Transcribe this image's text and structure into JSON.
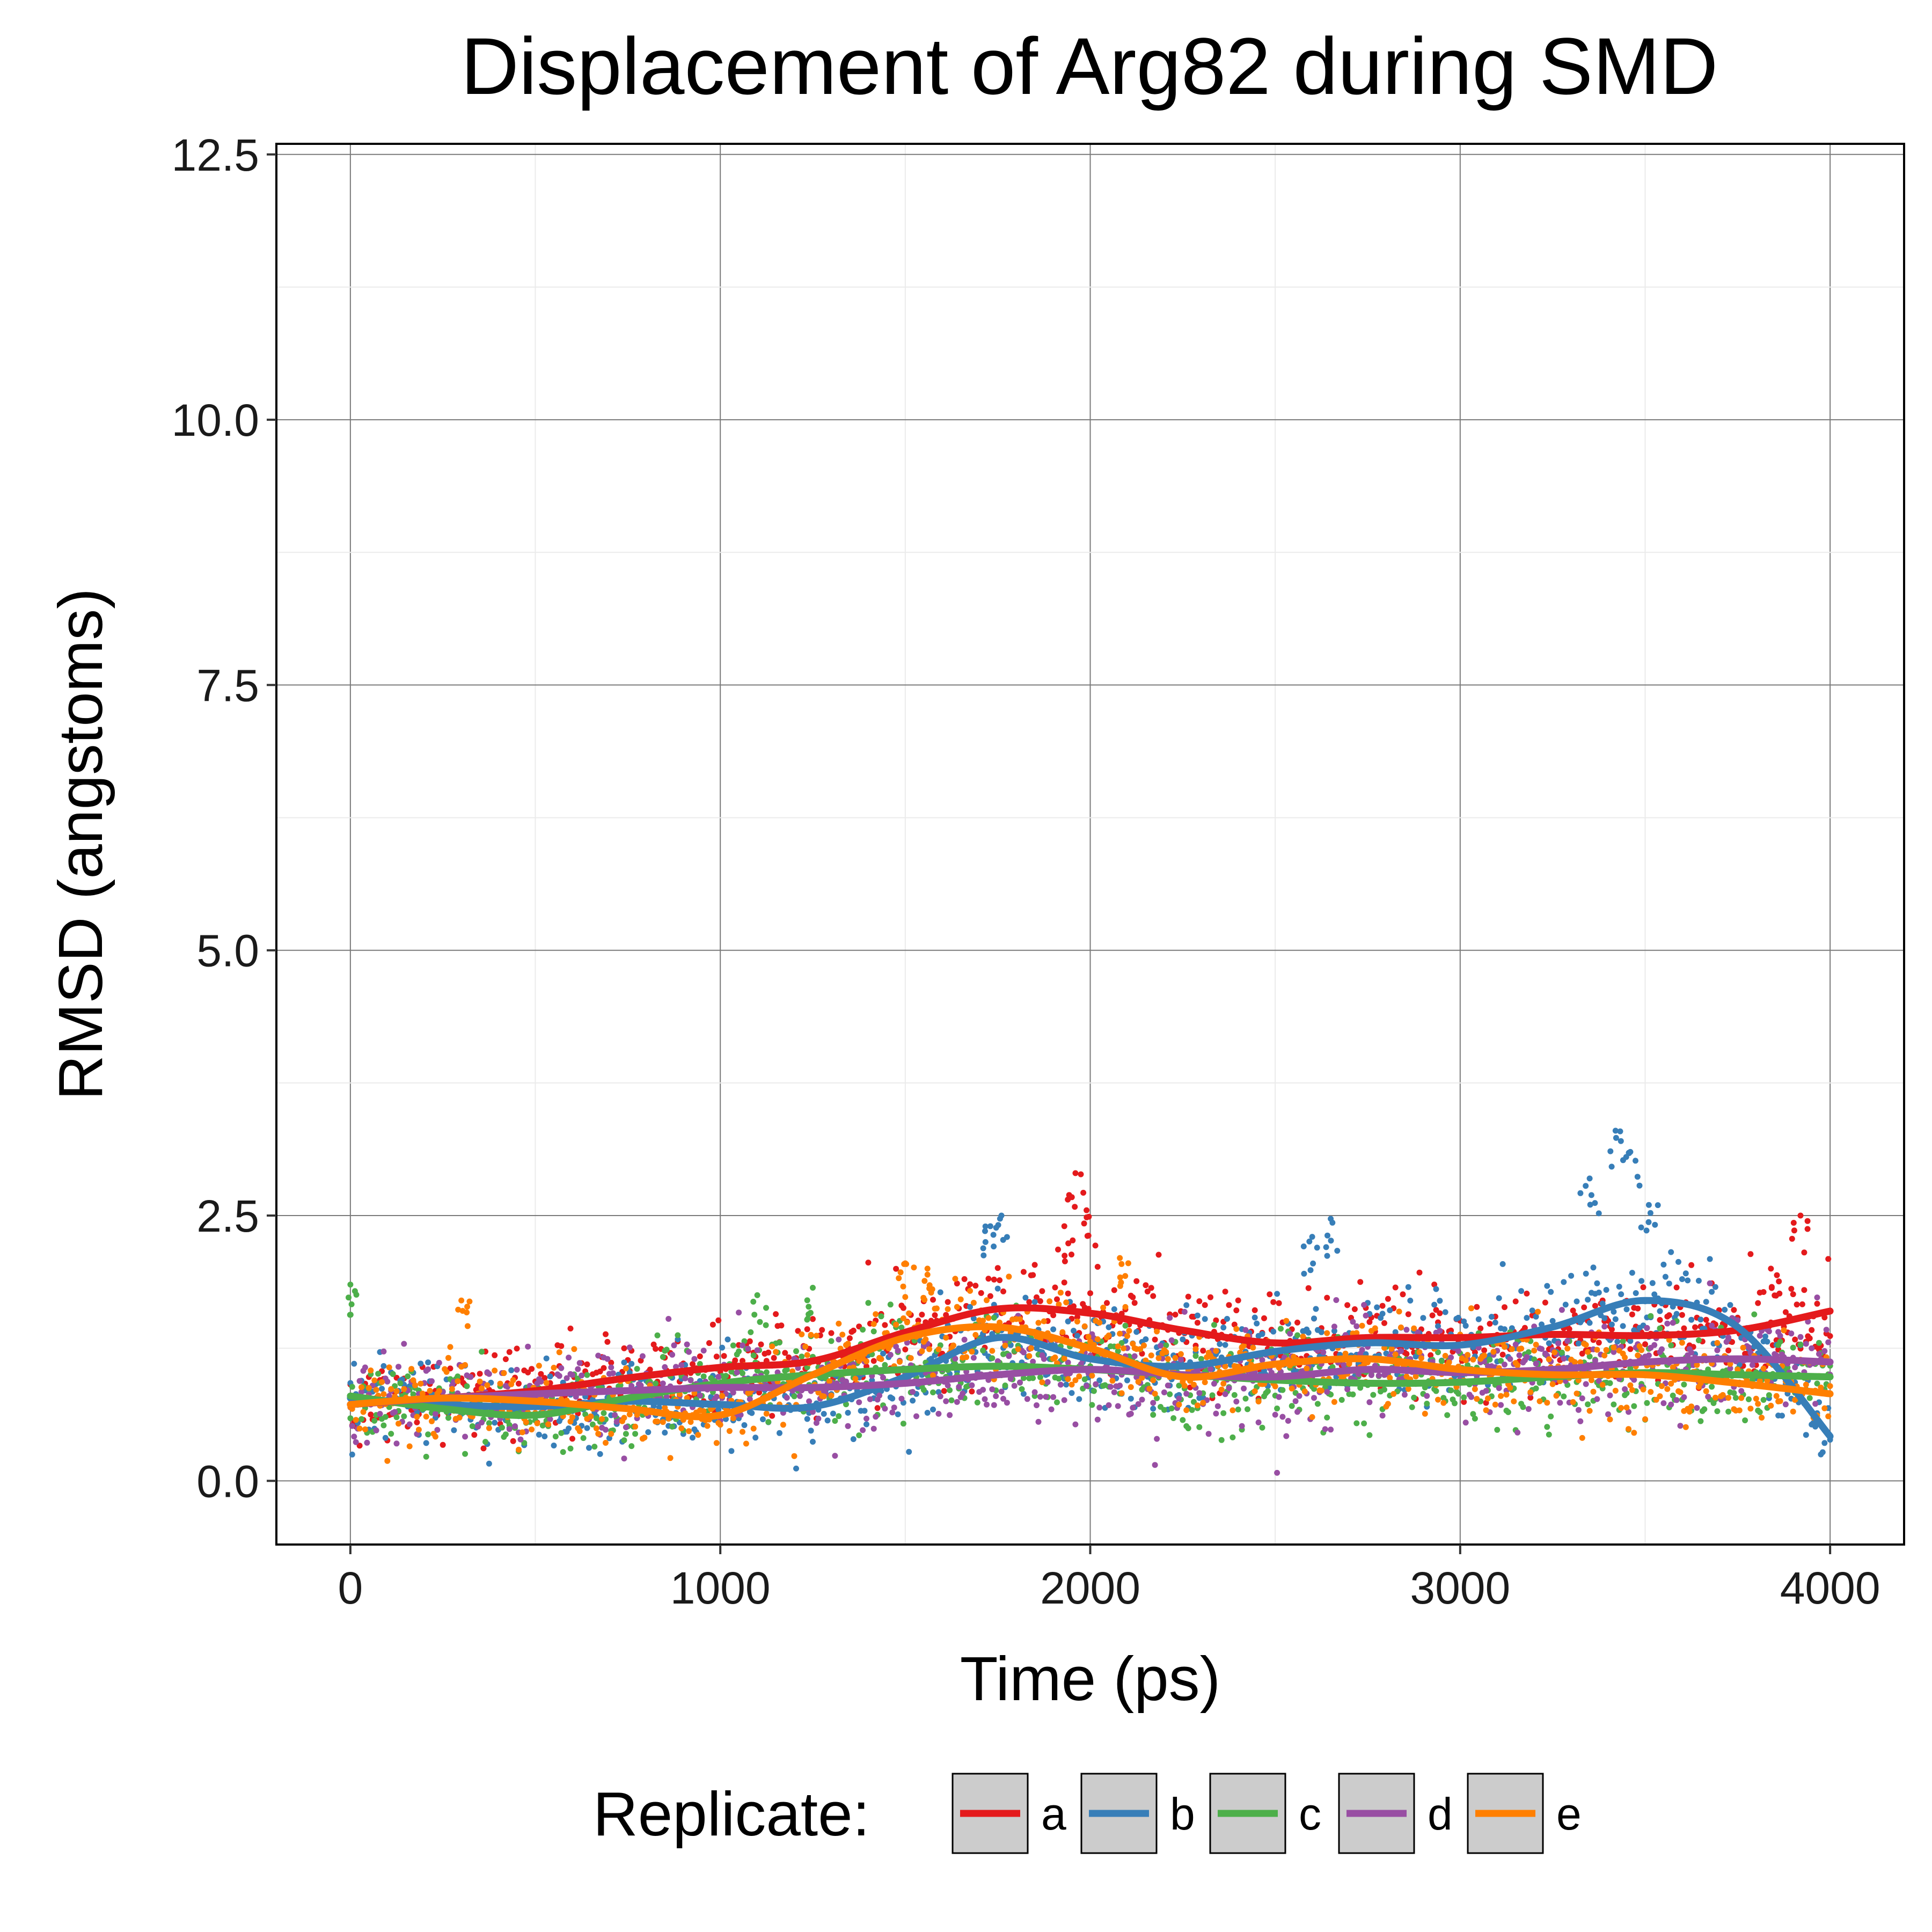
{
  "chart_data": {
    "type": "scatter",
    "title": "Displacement of Arg82 during SMD",
    "xlabel": "Time (ps)",
    "ylabel": "RMSD (angstoms)",
    "xlim": [
      -200,
      4200
    ],
    "ylim": [
      -0.6,
      12.6
    ],
    "x_ticks": [
      0,
      1000,
      2000,
      3000,
      4000
    ],
    "y_ticks": [
      0.0,
      2.5,
      5.0,
      7.5,
      10.0,
      12.5
    ],
    "x_tick_labels": [
      "0",
      "1000",
      "2000",
      "3000",
      "4000"
    ],
    "y_tick_labels": [
      "0.0",
      "2.5",
      "5.0",
      "7.5",
      "10.0",
      "12.5"
    ],
    "grid": true,
    "legend": {
      "title": "Replicate:",
      "position": "bottom"
    },
    "series": [
      {
        "name": "a",
        "color": "#e41a1c",
        "smooth": {
          "x": [
            0,
            250,
            500,
            750,
            1000,
            1250,
            1500,
            1750,
            2000,
            2250,
            2500,
            2750,
            3000,
            3250,
            3500,
            3750,
            4000
          ],
          "y": [
            0.72,
            0.78,
            0.85,
            0.97,
            1.07,
            1.13,
            1.4,
            1.62,
            1.58,
            1.42,
            1.3,
            1.35,
            1.35,
            1.38,
            1.37,
            1.42,
            1.6
          ]
        },
        "spikes": [
          {
            "x": 1960,
            "y": 2.9
          },
          {
            "x": 1990,
            "y": 2.55
          },
          {
            "x": 1930,
            "y": 2.4
          },
          {
            "x": 3920,
            "y": 2.5
          },
          {
            "x": 3840,
            "y": 2.0
          }
        ]
      },
      {
        "name": "b",
        "color": "#377eb8",
        "smooth": {
          "x": [
            0,
            250,
            500,
            750,
            1000,
            1250,
            1500,
            1750,
            2000,
            2250,
            2500,
            2750,
            3000,
            3250,
            3500,
            3750,
            4000
          ],
          "y": [
            0.78,
            0.72,
            0.7,
            0.75,
            0.72,
            0.7,
            0.98,
            1.35,
            1.15,
            1.08,
            1.22,
            1.3,
            1.28,
            1.45,
            1.7,
            1.45,
            0.42
          ]
        },
        "spikes": [
          {
            "x": 1730,
            "y": 2.4
          },
          {
            "x": 1760,
            "y": 2.5
          },
          {
            "x": 2600,
            "y": 2.3
          },
          {
            "x": 2650,
            "y": 2.47
          },
          {
            "x": 3420,
            "y": 3.3
          },
          {
            "x": 3460,
            "y": 3.1
          },
          {
            "x": 3350,
            "y": 2.85
          },
          {
            "x": 3510,
            "y": 2.6
          }
        ]
      },
      {
        "name": "c",
        "color": "#4daf4a",
        "smooth": {
          "x": [
            0,
            250,
            500,
            750,
            1000,
            1250,
            1500,
            1750,
            2000,
            2250,
            2500,
            2750,
            3000,
            3250,
            3500,
            3750,
            4000
          ],
          "y": [
            0.8,
            0.68,
            0.62,
            0.78,
            0.92,
            1.0,
            1.05,
            1.08,
            1.05,
            1.0,
            0.95,
            0.92,
            0.93,
            0.98,
            1.02,
            1.0,
            0.98
          ]
        },
        "spikes": [
          {
            "x": 0,
            "y": 1.85
          },
          {
            "x": 1100,
            "y": 1.75
          },
          {
            "x": 1250,
            "y": 1.82
          }
        ]
      },
      {
        "name": "d",
        "color": "#984ea3",
        "smooth": {
          "x": [
            0,
            250,
            500,
            750,
            1000,
            1250,
            1500,
            1750,
            2000,
            2250,
            2500,
            2750,
            3000,
            3250,
            3500,
            3750,
            4000
          ],
          "y": [
            0.72,
            0.78,
            0.82,
            0.85,
            0.88,
            0.88,
            0.92,
            1.0,
            1.05,
            1.0,
            0.98,
            1.05,
            1.02,
            1.05,
            1.12,
            1.15,
            1.12
          ]
        },
        "spikes": []
      },
      {
        "name": "e",
        "color": "#ff7f00",
        "smooth": {
          "x": [
            0,
            250,
            500,
            750,
            1000,
            1250,
            1500,
            1750,
            2000,
            2250,
            2500,
            2750,
            3000,
            3250,
            3500,
            3750,
            4000
          ],
          "y": [
            0.72,
            0.78,
            0.75,
            0.68,
            0.62,
            1.0,
            1.35,
            1.45,
            1.25,
            0.98,
            1.1,
            1.15,
            1.05,
            1.0,
            1.0,
            0.92,
            0.82
          ]
        },
        "spikes": [
          {
            "x": 1500,
            "y": 2.05
          },
          {
            "x": 1560,
            "y": 2.0
          },
          {
            "x": 2080,
            "y": 2.1
          },
          {
            "x": 300,
            "y": 1.7
          }
        ]
      }
    ]
  }
}
